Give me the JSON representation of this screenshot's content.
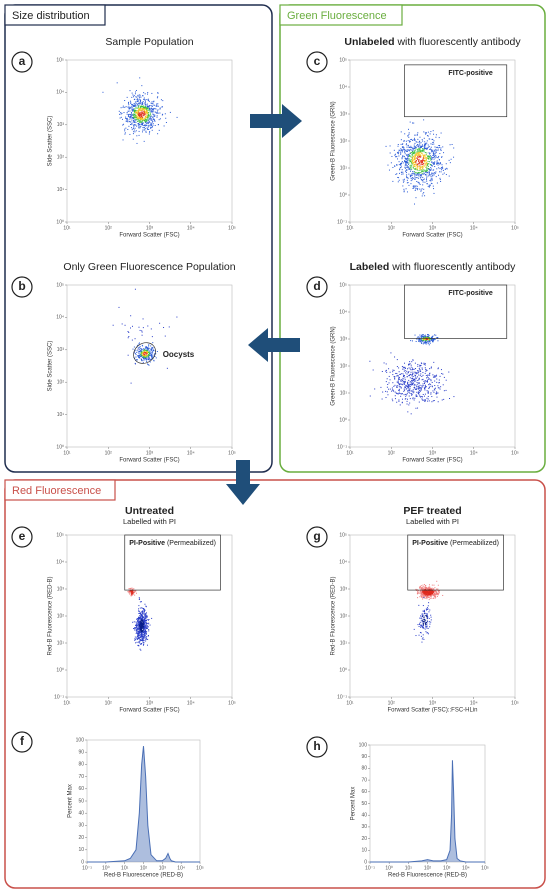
{
  "sections": [
    "Size distribution",
    "Green Fluorescence",
    "Red Fluorescence"
  ],
  "chart_data": [
    {
      "type": "scatter",
      "letter": "a",
      "title": "Sample Population",
      "xlabel": "Forward Scatter (FSC)",
      "ylabel": "Side Scatter (SSC)",
      "xlog": true,
      "ylog": true,
      "xlim": [
        10,
        100000
      ],
      "ylim": [
        1,
        100000
      ],
      "xticks": [
        {
          "value": 10,
          "label": "10¹"
        },
        {
          "value": 100,
          "label": "10²"
        },
        {
          "value": 1000,
          "label": "10³"
        },
        {
          "value": 10000,
          "label": "10⁴"
        },
        {
          "value": 100000,
          "label": "10⁵"
        }
      ],
      "yticks": [
        {
          "value": 1,
          "label": "10⁰"
        },
        {
          "value": 10,
          "label": "10¹"
        },
        {
          "value": 100,
          "label": "10²"
        },
        {
          "value": 1000,
          "label": "10³"
        },
        {
          "value": 10000,
          "label": "10⁴"
        },
        {
          "value": 100000,
          "label": "10⁵"
        }
      ]
    },
    {
      "type": "scatter",
      "letter": "b",
      "title": "Only Green Fluorescence Population",
      "annotation": "Oocysts",
      "xlabel": "Forward Scatter (FSC)",
      "ylabel": "Side Scatter (SSC)",
      "xlog": true,
      "ylog": true,
      "xlim": [
        10,
        100000
      ],
      "ylim": [
        1,
        100000
      ],
      "xticks": [
        {
          "value": 10,
          "label": "10¹"
        },
        {
          "value": 100,
          "label": "10²"
        },
        {
          "value": 1000,
          "label": "10³"
        },
        {
          "value": 10000,
          "label": "10⁴"
        },
        {
          "value": 100000,
          "label": "10⁵"
        }
      ],
      "yticks": [
        {
          "value": 1,
          "label": "10⁰"
        },
        {
          "value": 10,
          "label": "10¹"
        },
        {
          "value": 100,
          "label": "10²"
        },
        {
          "value": 1000,
          "label": "10³"
        },
        {
          "value": 10000,
          "label": "10⁴"
        },
        {
          "value": 100000,
          "label": "10⁵"
        }
      ]
    },
    {
      "type": "scatter",
      "letter": "c",
      "title_bold": "Unlabeled",
      "title": "with fluorescently antibody",
      "gate_bold": "FITC-positive",
      "xlabel": "Forward Scatter (FSC)",
      "ylabel": "Green-B Fluorescence (GRN)",
      "xlog": true,
      "ylog": true,
      "xlim": [
        10,
        100000
      ],
      "ylim": [
        0.1,
        100000
      ],
      "xticks": [
        {
          "value": 10,
          "label": "10¹"
        },
        {
          "value": 100,
          "label": "10²"
        },
        {
          "value": 1000,
          "label": "10³"
        },
        {
          "value": 10000,
          "label": "10⁴"
        },
        {
          "value": 100000,
          "label": "10⁵"
        }
      ],
      "yticks": [
        {
          "value": 0.1,
          "label": "10⁻¹"
        },
        {
          "value": 1,
          "label": "10⁰"
        },
        {
          "value": 10,
          "label": "10¹"
        },
        {
          "value": 100,
          "label": "10²"
        },
        {
          "value": 1000,
          "label": "10³"
        },
        {
          "value": 10000,
          "label": "10⁴"
        },
        {
          "value": 100000,
          "label": "10⁵"
        }
      ]
    },
    {
      "type": "scatter",
      "letter": "d",
      "title_bold": "Labeled",
      "title": "with fluorescently antibody",
      "gate_bold": "FITC-positive",
      "xlabel": "Forward Scatter (FSC)",
      "ylabel": "Green-B Fluorescence (GRN)",
      "xlog": true,
      "ylog": true,
      "xlim": [
        10,
        100000
      ],
      "ylim": [
        0.1,
        100000
      ],
      "xticks": [
        {
          "value": 10,
          "label": "10¹"
        },
        {
          "value": 100,
          "label": "10²"
        },
        {
          "value": 1000,
          "label": "10³"
        },
        {
          "value": 10000,
          "label": "10⁴"
        },
        {
          "value": 100000,
          "label": "10⁵"
        }
      ],
      "yticks": [
        {
          "value": 0.1,
          "label": "10⁻¹"
        },
        {
          "value": 1,
          "label": "10⁰"
        },
        {
          "value": 10,
          "label": "10¹"
        },
        {
          "value": 100,
          "label": "10²"
        },
        {
          "value": 1000,
          "label": "10³"
        },
        {
          "value": 10000,
          "label": "10⁴"
        },
        {
          "value": 100000,
          "label": "10⁵"
        }
      ]
    },
    {
      "type": "scatter",
      "letter": "e",
      "title_bold": "Untreated",
      "subtitle": "Labelled with PI",
      "gate_bold": "PI-Positive",
      "gate": "(Permeabilized)",
      "xlabel": "Forward Scatter (FSC)",
      "ylabel": "Red-B Fluorescence (RED-B)",
      "xlog": true,
      "ylog": true,
      "xlim": [
        10,
        100000
      ],
      "ylim": [
        0.1,
        100000
      ],
      "xticks": [
        {
          "value": 10,
          "label": "10¹"
        },
        {
          "value": 100,
          "label": "10²"
        },
        {
          "value": 1000,
          "label": "10³"
        },
        {
          "value": 10000,
          "label": "10⁴"
        },
        {
          "value": 100000,
          "label": "10⁵"
        }
      ],
      "yticks": [
        {
          "value": 0.1,
          "label": "10⁻¹"
        },
        {
          "value": 1,
          "label": "10⁰"
        },
        {
          "value": 10,
          "label": "10¹"
        },
        {
          "value": 100,
          "label": "10²"
        },
        {
          "value": 1000,
          "label": "10³"
        },
        {
          "value": 10000,
          "label": "10⁴"
        },
        {
          "value": 100000,
          "label": "10⁵"
        }
      ]
    },
    {
      "type": "scatter",
      "letter": "g",
      "title_bold": "PEF treated",
      "subtitle": "Labelled with PI",
      "gate_bold": "PI-Positive",
      "gate": "(Permeabilized)",
      "xlabel": "Forward Scatter (FSC)::FSC-HLin",
      "ylabel": "Red-B Fluorescence (RED-B)",
      "xlog": true,
      "ylog": true,
      "xlim": [
        10,
        100000
      ],
      "ylim": [
        0.1,
        100000
      ],
      "xticks": [
        {
          "value": 10,
          "label": "10¹"
        },
        {
          "value": 100,
          "label": "10²"
        },
        {
          "value": 1000,
          "label": "10³"
        },
        {
          "value": 10000,
          "label": "10⁴"
        },
        {
          "value": 100000,
          "label": "10⁵"
        }
      ],
      "yticks": [
        {
          "value": 0.1,
          "label": "10⁻¹"
        },
        {
          "value": 1,
          "label": "10⁰"
        },
        {
          "value": 10,
          "label": "10¹"
        },
        {
          "value": 100,
          "label": "10²"
        },
        {
          "value": 1000,
          "label": "10³"
        },
        {
          "value": 10000,
          "label": "10⁴"
        },
        {
          "value": 100000,
          "label": "10⁵"
        }
      ]
    },
    {
      "type": "area",
      "letter": "f",
      "xlabel": "Red-B Fluorescence (RED-B)",
      "ylabel": "Percent Max",
      "color": "#4a6fb5",
      "xlog": true,
      "xlim": [
        0.1,
        100000
      ],
      "ylim": [
        0,
        100
      ],
      "x": [
        0.1,
        1,
        10,
        20,
        40,
        60,
        80,
        100,
        130,
        170,
        250,
        500,
        1000,
        1500,
        2000,
        2500,
        3000,
        5000,
        10000,
        100000
      ],
      "values": [
        0,
        0,
        1,
        3,
        10,
        40,
        80,
        95,
        70,
        30,
        6,
        1,
        1,
        3,
        7,
        3,
        1,
        0,
        0,
        0
      ],
      "xticks": [
        {
          "value": 0.1,
          "label": "10⁻¹"
        },
        {
          "value": 1,
          "label": "10⁰"
        },
        {
          "value": 10,
          "label": "10¹"
        },
        {
          "value": 100,
          "label": "10²"
        },
        {
          "value": 1000,
          "label": "10³"
        },
        {
          "value": 10000,
          "label": "10⁴"
        },
        {
          "value": 100000,
          "label": "10⁵"
        }
      ],
      "yticks": [
        0,
        10,
        20,
        30,
        40,
        50,
        60,
        70,
        80,
        90,
        100
      ]
    },
    {
      "type": "area",
      "letter": "h",
      "xlabel": "Red-B Fluorescence (RED-B)",
      "ylabel": "Percent Max",
      "color": "#4a6fb5",
      "xlog": true,
      "xlim": [
        0.1,
        100000
      ],
      "ylim": [
        0,
        100
      ],
      "x": [
        0.1,
        1,
        10,
        50,
        100,
        200,
        500,
        1000,
        1500,
        1800,
        2000,
        2300,
        2700,
        3500,
        5000,
        10000,
        100000
      ],
      "values": [
        0,
        0,
        0,
        1,
        2,
        1,
        1,
        2,
        10,
        40,
        87,
        60,
        20,
        3,
        1,
        0,
        0
      ],
      "xticks": [
        {
          "value": 0.1,
          "label": "10⁻¹"
        },
        {
          "value": 1,
          "label": "10⁰"
        },
        {
          "value": 10,
          "label": "10¹"
        },
        {
          "value": 100,
          "label": "10²"
        },
        {
          "value": 1000,
          "label": "10³"
        },
        {
          "value": 10000,
          "label": "10⁴"
        },
        {
          "value": 100000,
          "label": "10⁵"
        }
      ],
      "yticks": [
        0,
        10,
        20,
        30,
        40,
        50,
        60,
        70,
        80,
        90,
        100
      ]
    }
  ]
}
